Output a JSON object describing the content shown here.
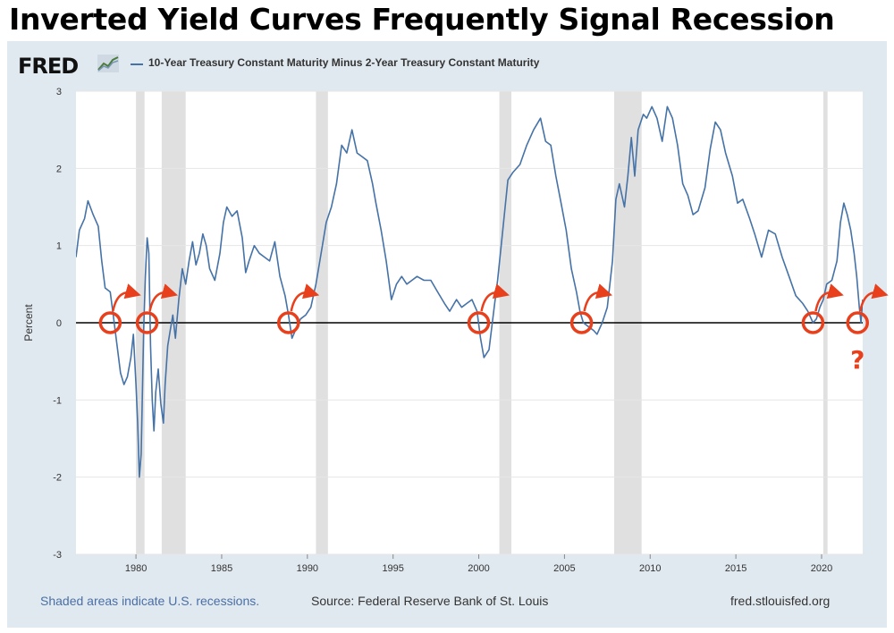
{
  "headline": "Inverted Yield Curves Frequently Signal Recession",
  "fred": {
    "logo_text": "FRED",
    "graph_icon": "fred-graph-icon",
    "legend_label": "10-Year Treasury Constant Maturity Minus 2-Year Treasury Constant Maturity",
    "legend_color": "#4572a7"
  },
  "footer": {
    "recession_note": "Shaded areas indicate U.S. recessions.",
    "source": "Source: Federal Reserve Bank of St. Louis",
    "site": "fred.stlouisfed.org"
  },
  "colors": {
    "series": "#4572a7",
    "recession": "#e0e0e0",
    "annotation": "#e8401c",
    "link_text": "#4a6fa5"
  },
  "chart_data": {
    "type": "line",
    "title": "10-Year Treasury Constant Maturity Minus 2-Year Treasury Constant Maturity",
    "xlabel": "",
    "ylabel": "Percent",
    "xlim": [
      1976.5,
      2022.4
    ],
    "ylim": [
      -3,
      3
    ],
    "x_ticks": [
      1980,
      1985,
      1990,
      1995,
      2000,
      2005,
      2010,
      2015,
      2020
    ],
    "y_ticks": [
      3,
      2,
      1,
      0,
      -1,
      -2,
      -3
    ],
    "grid": "horizontal",
    "recessions": [
      [
        1980.0,
        1980.5
      ],
      [
        1981.5,
        1982.9
      ],
      [
        1990.5,
        1991.2
      ],
      [
        2001.2,
        2001.9
      ],
      [
        2007.9,
        2009.5
      ],
      [
        2020.1,
        2020.35
      ]
    ],
    "series": [
      {
        "name": "10-Year Treasury Constant Maturity Minus 2-Year Treasury Constant Maturity",
        "points": [
          [
            1976.5,
            0.85
          ],
          [
            1976.7,
            1.2
          ],
          [
            1977.0,
            1.35
          ],
          [
            1977.2,
            1.58
          ],
          [
            1977.5,
            1.4
          ],
          [
            1977.8,
            1.25
          ],
          [
            1978.0,
            0.8
          ],
          [
            1978.2,
            0.45
          ],
          [
            1978.5,
            0.4
          ],
          [
            1978.7,
            0.05
          ],
          [
            1978.9,
            -0.3
          ],
          [
            1979.1,
            -0.65
          ],
          [
            1979.3,
            -0.8
          ],
          [
            1979.5,
            -0.7
          ],
          [
            1979.7,
            -0.45
          ],
          [
            1979.85,
            -0.15
          ],
          [
            1980.0,
            -0.8
          ],
          [
            1980.1,
            -1.3
          ],
          [
            1980.2,
            -2.0
          ],
          [
            1980.3,
            -1.7
          ],
          [
            1980.45,
            -0.1
          ],
          [
            1980.55,
            0.6
          ],
          [
            1980.65,
            1.1
          ],
          [
            1980.75,
            0.9
          ],
          [
            1980.85,
            -0.3
          ],
          [
            1980.95,
            -1.0
          ],
          [
            1981.05,
            -1.4
          ],
          [
            1981.15,
            -0.9
          ],
          [
            1981.3,
            -0.6
          ],
          [
            1981.45,
            -1.05
          ],
          [
            1981.6,
            -1.3
          ],
          [
            1981.7,
            -0.8
          ],
          [
            1981.85,
            -0.3
          ],
          [
            1982.0,
            -0.1
          ],
          [
            1982.15,
            0.1
          ],
          [
            1982.3,
            -0.2
          ],
          [
            1982.5,
            0.3
          ],
          [
            1982.7,
            0.7
          ],
          [
            1982.9,
            0.5
          ],
          [
            1983.1,
            0.8
          ],
          [
            1983.3,
            1.05
          ],
          [
            1983.5,
            0.75
          ],
          [
            1983.7,
            0.9
          ],
          [
            1983.9,
            1.15
          ],
          [
            1984.1,
            1.0
          ],
          [
            1984.3,
            0.7
          ],
          [
            1984.6,
            0.55
          ],
          [
            1984.9,
            0.9
          ],
          [
            1985.1,
            1.3
          ],
          [
            1985.3,
            1.5
          ],
          [
            1985.6,
            1.38
          ],
          [
            1985.9,
            1.45
          ],
          [
            1986.2,
            1.1
          ],
          [
            1986.4,
            0.65
          ],
          [
            1986.6,
            0.8
          ],
          [
            1986.9,
            1.0
          ],
          [
            1987.2,
            0.9
          ],
          [
            1987.5,
            0.85
          ],
          [
            1987.8,
            0.8
          ],
          [
            1988.1,
            1.05
          ],
          [
            1988.4,
            0.6
          ],
          [
            1988.7,
            0.35
          ],
          [
            1988.9,
            0.1
          ],
          [
            1989.1,
            -0.2
          ],
          [
            1989.3,
            -0.1
          ],
          [
            1989.6,
            0.05
          ],
          [
            1989.9,
            0.1
          ],
          [
            1990.2,
            0.2
          ],
          [
            1990.5,
            0.5
          ],
          [
            1990.8,
            0.9
          ],
          [
            1991.1,
            1.3
          ],
          [
            1991.4,
            1.5
          ],
          [
            1991.7,
            1.8
          ],
          [
            1992.0,
            2.3
          ],
          [
            1992.3,
            2.2
          ],
          [
            1992.6,
            2.5
          ],
          [
            1992.9,
            2.2
          ],
          [
            1993.2,
            2.15
          ],
          [
            1993.5,
            2.1
          ],
          [
            1993.8,
            1.8
          ],
          [
            1994.0,
            1.55
          ],
          [
            1994.3,
            1.2
          ],
          [
            1994.6,
            0.8
          ],
          [
            1994.9,
            0.3
          ],
          [
            1995.2,
            0.5
          ],
          [
            1995.5,
            0.6
          ],
          [
            1995.8,
            0.5
          ],
          [
            1996.1,
            0.55
          ],
          [
            1996.4,
            0.6
          ],
          [
            1996.8,
            0.55
          ],
          [
            1997.2,
            0.55
          ],
          [
            1997.6,
            0.4
          ],
          [
            1998.0,
            0.25
          ],
          [
            1998.3,
            0.15
          ],
          [
            1998.7,
            0.3
          ],
          [
            1999.0,
            0.2
          ],
          [
            1999.3,
            0.25
          ],
          [
            1999.6,
            0.3
          ],
          [
            1999.9,
            0.15
          ],
          [
            2000.1,
            -0.2
          ],
          [
            2000.3,
            -0.45
          ],
          [
            2000.6,
            -0.35
          ],
          [
            2000.9,
            0.2
          ],
          [
            2001.1,
            0.55
          ],
          [
            2001.4,
            1.2
          ],
          [
            2001.7,
            1.85
          ],
          [
            2002.0,
            1.95
          ],
          [
            2002.4,
            2.05
          ],
          [
            2002.8,
            2.3
          ],
          [
            2003.2,
            2.5
          ],
          [
            2003.6,
            2.65
          ],
          [
            2003.9,
            2.35
          ],
          [
            2004.2,
            2.3
          ],
          [
            2004.5,
            1.9
          ],
          [
            2004.8,
            1.55
          ],
          [
            2005.1,
            1.2
          ],
          [
            2005.4,
            0.7
          ],
          [
            2005.7,
            0.4
          ],
          [
            2005.9,
            0.15
          ],
          [
            2006.1,
            0.0
          ],
          [
            2006.4,
            -0.05
          ],
          [
            2006.7,
            -0.1
          ],
          [
            2006.9,
            -0.15
          ],
          [
            2007.2,
            0.0
          ],
          [
            2007.5,
            0.2
          ],
          [
            2007.8,
            0.8
          ],
          [
            2008.0,
            1.6
          ],
          [
            2008.2,
            1.8
          ],
          [
            2008.5,
            1.5
          ],
          [
            2008.7,
            1.9
          ],
          [
            2008.9,
            2.4
          ],
          [
            2009.1,
            1.9
          ],
          [
            2009.3,
            2.5
          ],
          [
            2009.6,
            2.7
          ],
          [
            2009.8,
            2.65
          ],
          [
            2010.1,
            2.8
          ],
          [
            2010.4,
            2.65
          ],
          [
            2010.7,
            2.35
          ],
          [
            2011.0,
            2.8
          ],
          [
            2011.3,
            2.65
          ],
          [
            2011.6,
            2.3
          ],
          [
            2011.9,
            1.8
          ],
          [
            2012.2,
            1.65
          ],
          [
            2012.5,
            1.4
          ],
          [
            2012.8,
            1.45
          ],
          [
            2013.2,
            1.75
          ],
          [
            2013.5,
            2.25
          ],
          [
            2013.8,
            2.6
          ],
          [
            2014.1,
            2.5
          ],
          [
            2014.4,
            2.2
          ],
          [
            2014.8,
            1.9
          ],
          [
            2015.1,
            1.55
          ],
          [
            2015.4,
            1.6
          ],
          [
            2015.8,
            1.35
          ],
          [
            2016.1,
            1.15
          ],
          [
            2016.5,
            0.85
          ],
          [
            2016.9,
            1.2
          ],
          [
            2017.3,
            1.15
          ],
          [
            2017.7,
            0.85
          ],
          [
            2018.1,
            0.6
          ],
          [
            2018.5,
            0.35
          ],
          [
            2018.9,
            0.25
          ],
          [
            2019.2,
            0.15
          ],
          [
            2019.5,
            0.0
          ],
          [
            2019.7,
            0.05
          ],
          [
            2019.9,
            0.2
          ],
          [
            2020.1,
            0.3
          ],
          [
            2020.3,
            0.5
          ],
          [
            2020.6,
            0.55
          ],
          [
            2020.9,
            0.8
          ],
          [
            2021.1,
            1.3
          ],
          [
            2021.3,
            1.55
          ],
          [
            2021.5,
            1.4
          ],
          [
            2021.7,
            1.2
          ],
          [
            2021.9,
            0.9
          ],
          [
            2022.05,
            0.6
          ],
          [
            2022.2,
            0.2
          ],
          [
            2022.3,
            0.0
          ],
          [
            2022.4,
            0.3
          ]
        ]
      }
    ],
    "annotations": [
      {
        "label": "",
        "marker": "circle",
        "x": 1978.5,
        "y": 0
      },
      {
        "label": "",
        "marker": "circle",
        "x": 1980.65,
        "y": 0
      },
      {
        "label": "",
        "marker": "circle",
        "x": 1988.9,
        "y": 0
      },
      {
        "label": "",
        "marker": "circle",
        "x": 2000.0,
        "y": 0
      },
      {
        "label": "",
        "marker": "circle",
        "x": 2006.0,
        "y": 0
      },
      {
        "label": "",
        "marker": "circle",
        "x": 2019.5,
        "y": 0
      },
      {
        "label": "?",
        "marker": "circle",
        "x": 2022.1,
        "y": 0
      }
    ]
  }
}
